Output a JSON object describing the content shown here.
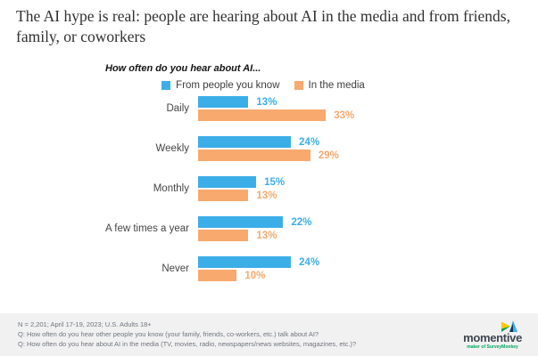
{
  "title": "The AI hype is real: people are hearing about AI in the media and from friends, family, or coworkers",
  "subtitle": "How often do you hear about AI...",
  "chart_data": {
    "type": "bar",
    "orientation": "horizontal",
    "title": "How often do you hear about AI...",
    "categories": [
      "Daily",
      "Weekly",
      "Monthly",
      "A few times a year",
      "Never"
    ],
    "series": [
      {
        "name": "From people you know",
        "color": "#3BAEE8",
        "values": [
          13,
          24,
          15,
          22,
          24
        ]
      },
      {
        "name": "In the media",
        "color": "#F7A96E",
        "values": [
          33,
          29,
          13,
          13,
          10
        ]
      }
    ],
    "value_suffix": "%",
    "xlim": [
      0,
      35
    ],
    "grid": false,
    "legend_position": "top",
    "data_labels": true
  },
  "footer": {
    "note": "N = 2,201; April 17-19, 2023; U.S. Adults 18+",
    "q1": "Q: How often do you hear other people you know (your family, friends, co-workers, etc.) talk about AI?",
    "q2": "Q: How often do you hear about AI  in the media (TV, movies, radio, newspapers/news websites, magazines, etc.)?",
    "logo": {
      "name": "momentive",
      "tagline": "maker of SurveyMonkey",
      "icon": "momentive-triangles-mark",
      "icon_colors": {
        "yellow": "#FFC905",
        "green": "#089F4C",
        "blue": "#3BB0E5",
        "navy": "#16325C"
      }
    }
  },
  "colors": {
    "footer_bg": "#F1F1F2",
    "title_text": "#303030"
  }
}
